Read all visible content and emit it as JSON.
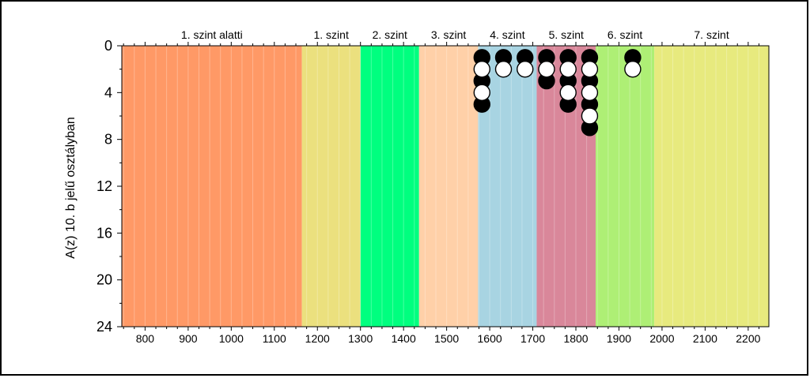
{
  "chart_data": {
    "type": "scatter",
    "ylabel": "A(z) 10. b jelű osztályban",
    "xlabel": "",
    "xlim": [
      746,
      2248
    ],
    "ylim": [
      0,
      24
    ],
    "y_inverted": true,
    "x_ticks": [
      800,
      900,
      1000,
      1100,
      1200,
      1300,
      1400,
      1500,
      1600,
      1700,
      1800,
      1900,
      2000,
      2100,
      2200
    ],
    "y_ticks": [
      0,
      4,
      8,
      12,
      16,
      20,
      24
    ],
    "bands": [
      {
        "label": "1. szint alatti",
        "from": 746,
        "to": 1164,
        "color": "#FF9966"
      },
      {
        "label": "1. szint",
        "from": 1164,
        "to": 1300,
        "color": "#EBE07E"
      },
      {
        "label": "2. szint",
        "from": 1300,
        "to": 1436,
        "color": "#00FF7F"
      },
      {
        "label": "3. szint",
        "from": 1436,
        "to": 1573,
        "color": "#FFD0A8"
      },
      {
        "label": "4. szint",
        "from": 1573,
        "to": 1709,
        "color": "#A8D4E2"
      },
      {
        "label": "5. szint",
        "from": 1709,
        "to": 1846,
        "color": "#D9879A"
      },
      {
        "label": "6. szint",
        "from": 1846,
        "to": 1982,
        "color": "#AEEF75"
      },
      {
        "label": "7. szint",
        "from": 1982,
        "to": 2248,
        "color": "#E7EA7E"
      }
    ],
    "series": [
      {
        "values": [
          [
            1582,
            1
          ],
          [
            1582,
            3
          ],
          [
            1582,
            5
          ],
          [
            1632,
            1
          ],
          [
            1682,
            1
          ],
          [
            1732,
            1
          ],
          [
            1732,
            3
          ],
          [
            1782,
            1
          ],
          [
            1782,
            3
          ],
          [
            1782,
            5
          ],
          [
            1832,
            1
          ],
          [
            1832,
            3
          ],
          [
            1832,
            5
          ],
          [
            1832,
            7
          ],
          [
            1932,
            1
          ]
        ],
        "fill": "#000000"
      },
      {
        "values": [
          [
            1582,
            2
          ],
          [
            1582,
            4
          ],
          [
            1632,
            2
          ],
          [
            1682,
            2
          ],
          [
            1732,
            2
          ],
          [
            1782,
            2
          ],
          [
            1782,
            4
          ],
          [
            1832,
            2
          ],
          [
            1832,
            4
          ],
          [
            1832,
            6
          ],
          [
            1932,
            2
          ]
        ],
        "fill": "#ffffff"
      }
    ]
  }
}
